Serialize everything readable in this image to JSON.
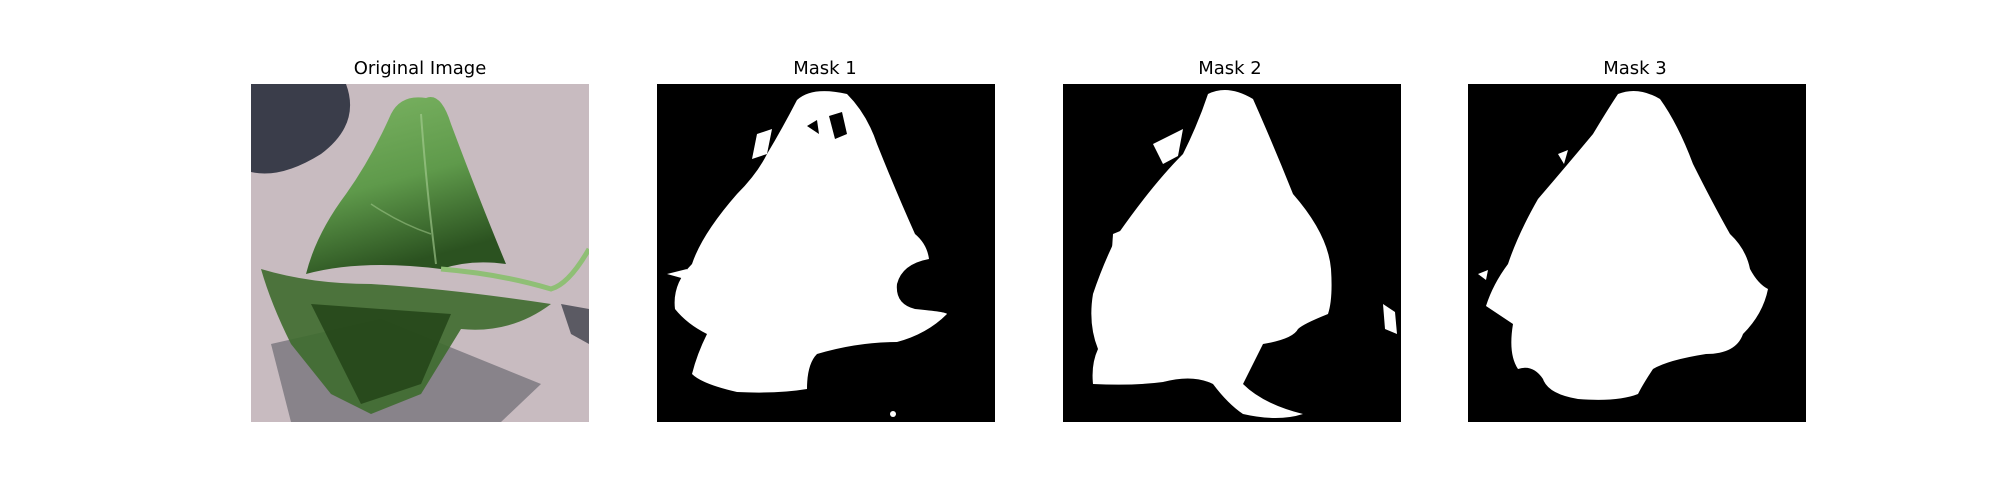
{
  "figure": {
    "panels": [
      {
        "title": "Original Image"
      },
      {
        "title": "Mask 1"
      },
      {
        "title": "Mask 2"
      },
      {
        "title": "Mask 3"
      }
    ]
  },
  "colors": {
    "background": "#ffffff",
    "mask_background": "#000000",
    "mask_foreground": "#ffffff",
    "leaf_green": "#6fa85a",
    "leaf_dark": "#2f5a22",
    "surface": "#c9bcc0",
    "shadow": "#3b3d48"
  }
}
